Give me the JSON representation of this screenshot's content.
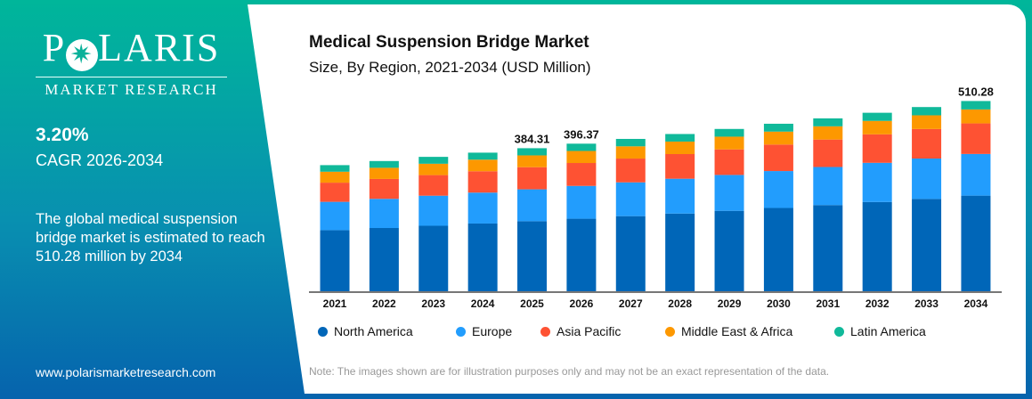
{
  "brand": {
    "name": "POLARIS",
    "tagline": "MARKET RESEARCH"
  },
  "sidebar": {
    "cagr_value": "3.20%",
    "cagr_label": "CAGR 2026-2034",
    "description": "The global medical suspension bridge market is estimated to reach 510.28 million by 2034",
    "website": "www.polarismarketresearch.com"
  },
  "note": "Note: The images shown are for illustration purposes only and may not be an exact representation of the data.",
  "colors": {
    "North America": "#0066b8",
    "Europe": "#229dfd",
    "Asia Pacific": "#fe5233",
    "Middle East & Africa": "#fd9800",
    "Latin America": "#10b99a"
  },
  "chart_data": {
    "type": "bar",
    "stacked": true,
    "title": "Medical Suspension Bridge Market",
    "subtitle": "Size, By Region, 2021-2034 (USD Million)",
    "categories": [
      "2021",
      "2022",
      "2023",
      "2024",
      "2025",
      "2026",
      "2027",
      "2028",
      "2029",
      "2030",
      "2031",
      "2032",
      "2033",
      "2034"
    ],
    "series": [
      {
        "name": "North America",
        "values": [
          165.5,
          171.2,
          177.2,
          183.2,
          189.4,
          196.0,
          202.9,
          209.8,
          217.1,
          224.7,
          232.5,
          240.6,
          248.9,
          257.7
        ]
      },
      {
        "name": "Europe",
        "values": [
          75.6,
          77.9,
          80.3,
          82.6,
          85.1,
          87.6,
          90.2,
          93.0,
          95.8,
          98.6,
          101.6,
          104.7,
          107.8,
          111.2
        ]
      },
      {
        "name": "Asia Pacific",
        "values": [
          51.2,
          53.1,
          55.0,
          57.0,
          59.1,
          61.2,
          63.5,
          65.8,
          68.2,
          70.7,
          73.3,
          76.0,
          78.8,
          81.6
        ]
      },
      {
        "name": "Middle East & Africa",
        "values": [
          29.2,
          29.8,
          30.3,
          30.9,
          31.5,
          32.1,
          32.7,
          33.4,
          34.0,
          34.6,
          35.3,
          35.9,
          36.6,
          37.3
        ]
      },
      {
        "name": "Latin America",
        "values": [
          17.6,
          18.0,
          18.4,
          18.7,
          19.2,
          19.5,
          19.8,
          20.2,
          20.6,
          21.0,
          21.3,
          21.7,
          22.1,
          22.5
        ]
      }
    ],
    "data_labels": [
      {
        "category": "2025",
        "text": "384.31"
      },
      {
        "category": "2026",
        "text": "396.37"
      },
      {
        "category": "2034",
        "text": "510.28"
      }
    ],
    "ylim": [
      0,
      560
    ],
    "grid": false,
    "y_axis_visible": false,
    "legend_position": "bottom"
  }
}
